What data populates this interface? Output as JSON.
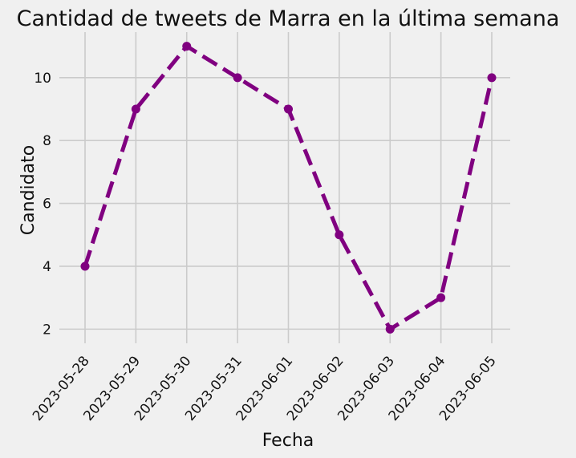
{
  "chart_data": {
    "type": "line",
    "title": "Cantidad de tweets de Marra en la última semana",
    "xlabel": "Fecha",
    "ylabel": "Candidato",
    "x": [
      "2023-05-28",
      "2023-05-29",
      "2023-05-30",
      "2023-05-31",
      "2023-06-01",
      "2023-06-02",
      "2023-06-03",
      "2023-06-04",
      "2023-06-05"
    ],
    "values": [
      4,
      9,
      11,
      10,
      9,
      5,
      2,
      3,
      10
    ],
    "ylim": [
      1.55,
      11.45
    ],
    "yticks": [
      "2",
      "4",
      "6",
      "8",
      "10"
    ],
    "grid": true,
    "line_style": "dashed",
    "marker": "circle",
    "colors": {
      "line": "#800080",
      "background": "#f0f0f0",
      "grid": "#cbcbcb"
    }
  }
}
